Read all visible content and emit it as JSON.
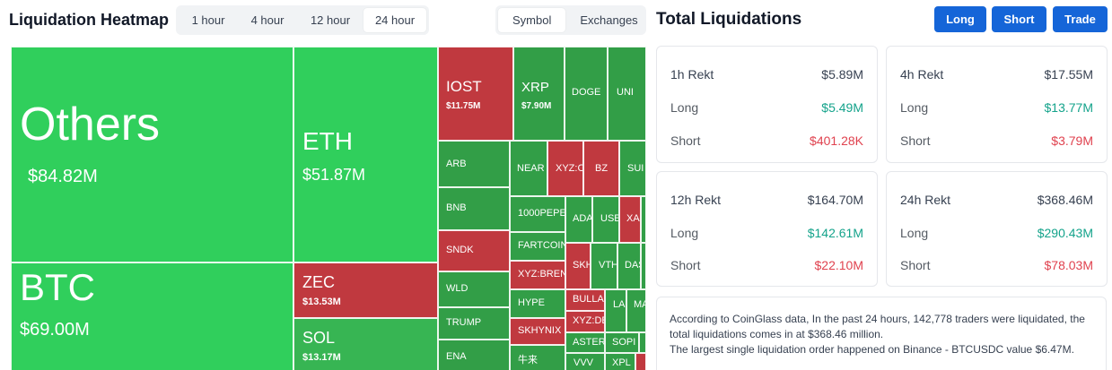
{
  "heatmap": {
    "title": "Liquidation Heatmap",
    "time_tabs": [
      {
        "label": "1 hour"
      },
      {
        "label": "4 hour"
      },
      {
        "label": "12 hour"
      },
      {
        "label": "24 hour"
      }
    ],
    "selected_time": "24 hour",
    "view_tabs": [
      {
        "label": "Symbol"
      },
      {
        "label": "Exchanges"
      }
    ],
    "selected_view": "Symbol",
    "cells": {
      "others": {
        "name": "Others",
        "value": "$84.82M"
      },
      "btc": {
        "name": "BTC",
        "value": "$69.00M"
      },
      "eth": {
        "name": "ETH",
        "value": "$51.87M"
      },
      "zec": {
        "name": "ZEC",
        "value": "$13.53M"
      },
      "sol": {
        "name": "SOL",
        "value": "$13.17M"
      },
      "iost": {
        "name": "IOST",
        "value": "$11.75M"
      },
      "xrp": {
        "name": "XRP",
        "value": "$7.90M"
      },
      "doge": {
        "name": "DOGE"
      },
      "uni": {
        "name": "UNI"
      },
      "arb": {
        "name": "ARB"
      },
      "near": {
        "name": "NEAR"
      },
      "xyzc": {
        "name": "XYZ:C"
      },
      "bz": {
        "name": "BZ"
      },
      "sui": {
        "name": "SUI"
      },
      "bnb": {
        "name": "BNB"
      },
      "pepe": {
        "name": "1000PEPE"
      },
      "ada": {
        "name": "ADA"
      },
      "use": {
        "name": "USE"
      },
      "xal": {
        "name": "XAI"
      },
      "sndk": {
        "name": "SNDK"
      },
      "fartcoin": {
        "name": "FARTCOIN"
      },
      "wld": {
        "name": "WLD"
      },
      "xyzbrent": {
        "name": "XYZ:BRENT"
      },
      "skh": {
        "name": "SKH"
      },
      "vth": {
        "name": "VTH"
      },
      "das": {
        "name": "DAS"
      },
      "hype": {
        "name": "HYPE"
      },
      "bulla": {
        "name": "BULLA"
      },
      "trump": {
        "name": "TRUMP"
      },
      "skhynix": {
        "name": "SKHYNIX"
      },
      "xyzde": {
        "name": "XYZ:DE"
      },
      "la": {
        "name": "LA"
      },
      "ma": {
        "name": "MA"
      },
      "ena": {
        "name": "ENA"
      },
      "cjk": {
        "name": "牛来"
      },
      "aster": {
        "name": "ASTER"
      },
      "sopi": {
        "name": "SOPI"
      },
      "vvv": {
        "name": "VVV"
      },
      "xpl": {
        "name": "XPL"
      }
    }
  },
  "total": {
    "title": "Total Liquidations",
    "buttons": {
      "long": "Long",
      "short": "Short",
      "trade": "Trade"
    },
    "cards": [
      {
        "period": "1h Rekt",
        "total": "$5.89M",
        "long_label": "Long",
        "long": "$5.49M",
        "short_label": "Short",
        "short": "$401.28K"
      },
      {
        "period": "4h Rekt",
        "total": "$17.55M",
        "long_label": "Long",
        "long": "$13.77M",
        "short_label": "Short",
        "short": "$3.79M"
      },
      {
        "period": "12h Rekt",
        "total": "$164.70M",
        "long_label": "Long",
        "long": "$142.61M",
        "short_label": "Short",
        "short": "$22.10M"
      },
      {
        "period": "24h Rekt",
        "total": "$368.46M",
        "long_label": "Long",
        "long": "$290.43M",
        "short_label": "Short",
        "short": "$78.03M"
      }
    ],
    "info": {
      "line1": "According to CoinGlass data, In the past 24 hours, 142,778 traders were liquidated, the total liquidations comes in at $368.46 million.",
      "line2": "The largest single liquidation order happened on Binance - BTCUSDC value $6.47M."
    }
  },
  "colors": {
    "long_green": "#30cf5c",
    "short_red": "#c0393f",
    "accent_blue": "#1565d8",
    "long_text": "#14a38b",
    "short_text": "#e0424f"
  }
}
